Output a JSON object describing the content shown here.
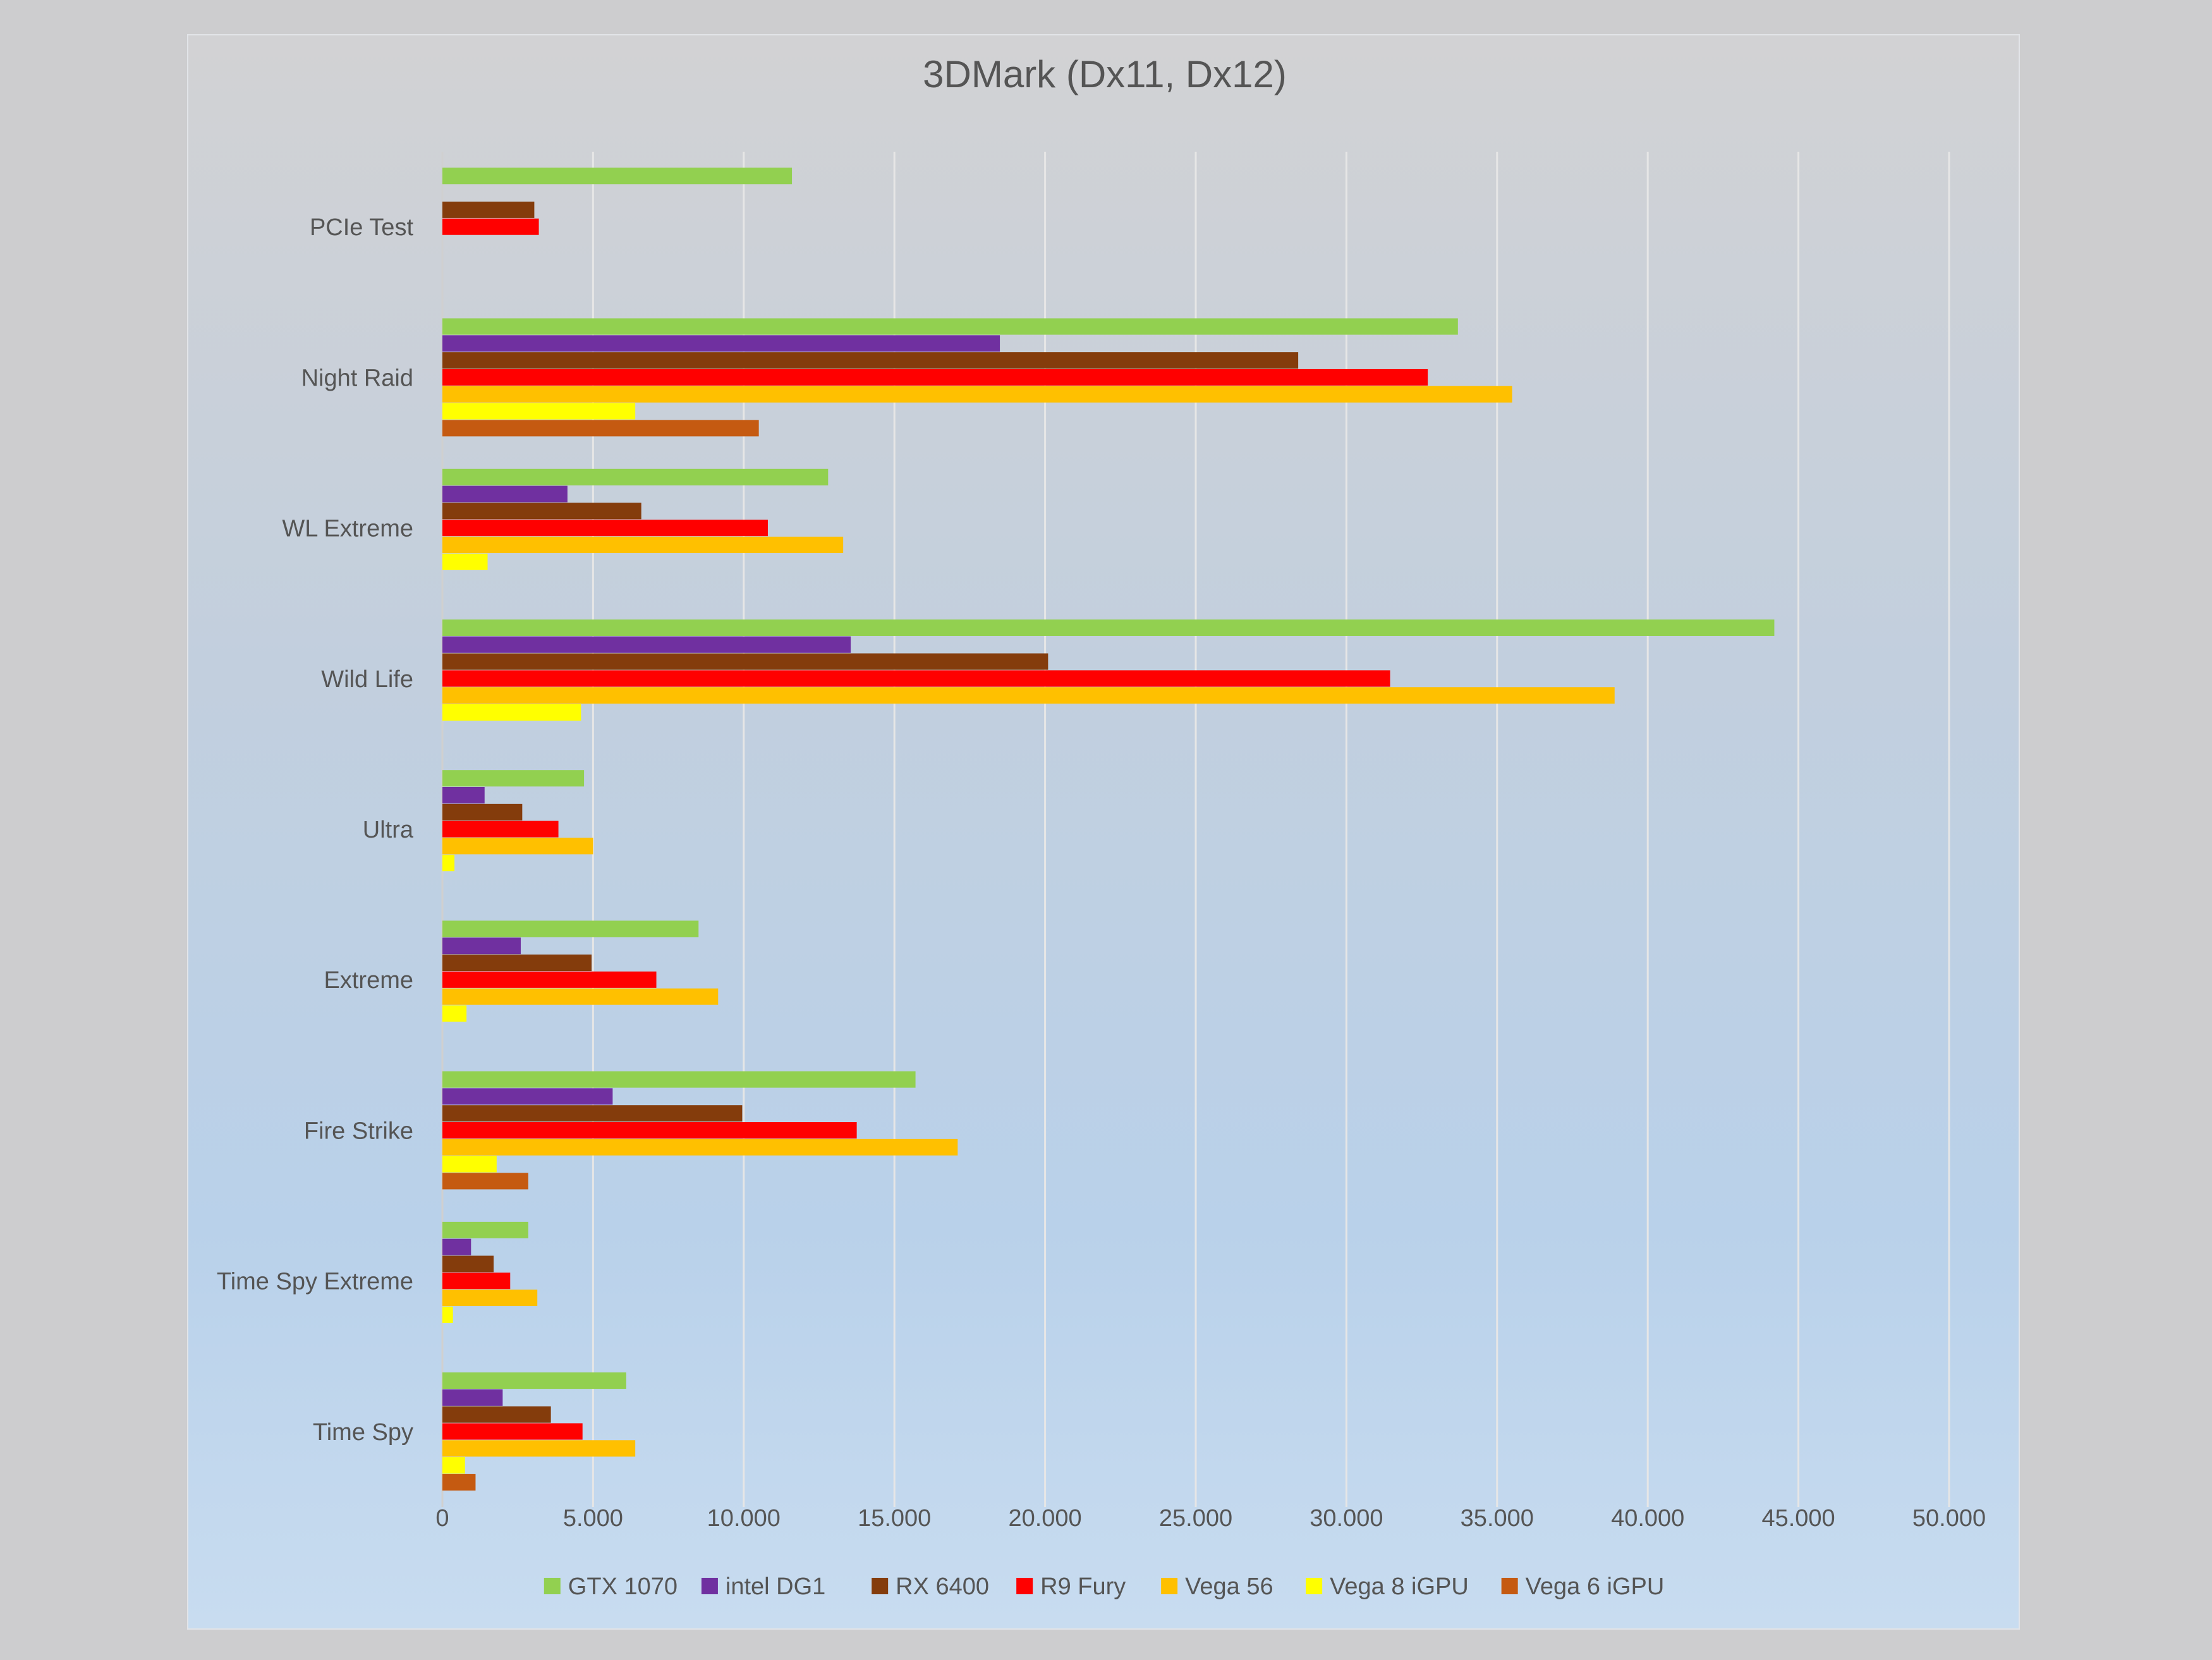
{
  "chart_data": {
    "type": "bar",
    "orientation": "horizontal",
    "title": "3DMark (Dx11, Dx12)",
    "categories": [
      "Time Spy",
      "Time Spy Extreme",
      "Fire Strike",
      "Extreme",
      "Ultra",
      "Wild Life",
      "WL Extreme",
      "Night Raid",
      "PCIe Test"
    ],
    "category_order": "bottom-to-top",
    "xlim": [
      0,
      50000
    ],
    "x_ticks": [
      0,
      5000,
      10000,
      15000,
      20000,
      25000,
      30000,
      35000,
      40000,
      45000,
      50000
    ],
    "x_tick_labels": [
      "0",
      "5.000",
      "10.000",
      "15.000",
      "20.000",
      "25.000",
      "30.000",
      "35.000",
      "40.000",
      "45.000",
      "50.000"
    ],
    "grid": "vertical",
    "legend_position": "bottom",
    "series": [
      {
        "name": "GTX 1070",
        "color": "#92d050",
        "values": [
          6100,
          2850,
          15700,
          8500,
          4700,
          44200,
          12800,
          33700,
          11600
        ]
      },
      {
        "name": "intel DG1",
        "color": "#7030a0",
        "values": [
          2000,
          950,
          5650,
          2600,
          1400,
          13550,
          4150,
          18500,
          null
        ]
      },
      {
        "name": "RX 6400",
        "color": "#843c0c",
        "values": [
          3600,
          1700,
          9950,
          4950,
          2650,
          20100,
          6600,
          28400,
          3050
        ]
      },
      {
        "name": "R9 Fury",
        "color": "#ff0000",
        "values": [
          4650,
          2250,
          13750,
          7100,
          3850,
          31450,
          10800,
          32700,
          3200
        ]
      },
      {
        "name": "Vega 56",
        "color": "#ffc000",
        "values": [
          6400,
          3150,
          17100,
          9150,
          5000,
          38900,
          13300,
          35500,
          null
        ]
      },
      {
        "name": "Vega 8 iGPU",
        "color": "#ffff00",
        "values": [
          750,
          350,
          1800,
          800,
          400,
          4600,
          1500,
          6400,
          null
        ]
      },
      {
        "name": "Vega 6 iGPU",
        "color": "#c55a11",
        "values": [
          1100,
          null,
          2850,
          null,
          null,
          null,
          null,
          10500,
          null
        ]
      }
    ]
  }
}
